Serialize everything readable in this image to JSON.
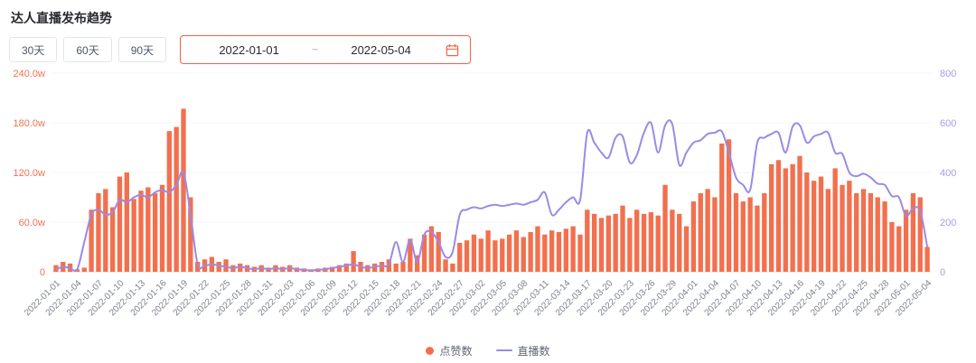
{
  "page": {
    "title": "达人直播发布趋势"
  },
  "controls": {
    "range_buttons": [
      {
        "label": "30天"
      },
      {
        "label": "60天"
      },
      {
        "label": "90天"
      }
    ],
    "date_range": {
      "start": "2022-01-01",
      "separator": "~",
      "end": "2022-05-04"
    }
  },
  "colors": {
    "bar": "#f2704e",
    "line": "#9b8ae6",
    "left_axis_label": "#f2704e",
    "right_axis_label": "#a99ce8",
    "x_axis_label": "#7b828e",
    "axis_line": "#e3e5ea",
    "grid_line": "#f5f5f7",
    "date_border": "#f0614a"
  },
  "chart_data": {
    "type": "bar",
    "title": "达人直播发布趋势",
    "legend": [
      "点赞数",
      "直播数"
    ],
    "legend_position": "bottom",
    "x_tick_every": 3,
    "left_axis": {
      "ticks": [
        "0",
        "60.0w",
        "120.0w",
        "180.0w",
        "240.0w"
      ],
      "max": 240,
      "unit": "w"
    },
    "right_axis": {
      "ticks": [
        "0",
        "200",
        "400",
        "600",
        "800"
      ],
      "max": 800
    },
    "x": [
      "2022-01-01",
      "2022-01-02",
      "2022-01-03",
      "2022-01-04",
      "2022-01-05",
      "2022-01-06",
      "2022-01-07",
      "2022-01-08",
      "2022-01-09",
      "2022-01-10",
      "2022-01-11",
      "2022-01-12",
      "2022-01-13",
      "2022-01-14",
      "2022-01-15",
      "2022-01-16",
      "2022-01-17",
      "2022-01-18",
      "2022-01-19",
      "2022-01-20",
      "2022-01-21",
      "2022-01-22",
      "2022-01-23",
      "2022-01-24",
      "2022-01-25",
      "2022-01-26",
      "2022-01-27",
      "2022-01-28",
      "2022-01-29",
      "2022-01-30",
      "2022-01-31",
      "2022-02-01",
      "2022-02-02",
      "2022-02-03",
      "2022-02-04",
      "2022-02-05",
      "2022-02-06",
      "2022-02-07",
      "2022-02-08",
      "2022-02-09",
      "2022-02-10",
      "2022-02-11",
      "2022-02-12",
      "2022-02-13",
      "2022-02-14",
      "2022-02-15",
      "2022-02-16",
      "2022-02-17",
      "2022-02-18",
      "2022-02-19",
      "2022-02-20",
      "2022-02-21",
      "2022-02-22",
      "2022-02-23",
      "2022-02-24",
      "2022-02-25",
      "2022-02-26",
      "2022-02-27",
      "2022-02-28",
      "2022-03-01",
      "2022-03-02",
      "2022-03-03",
      "2022-03-04",
      "2022-03-05",
      "2022-03-06",
      "2022-03-07",
      "2022-03-08",
      "2022-03-09",
      "2022-03-10",
      "2022-03-11",
      "2022-03-12",
      "2022-03-13",
      "2022-03-14",
      "2022-03-15",
      "2022-03-16",
      "2022-03-17",
      "2022-03-18",
      "2022-03-19",
      "2022-03-20",
      "2022-03-21",
      "2022-03-22",
      "2022-03-23",
      "2022-03-24",
      "2022-03-25",
      "2022-03-26",
      "2022-03-27",
      "2022-03-28",
      "2022-03-29",
      "2022-03-30",
      "2022-03-31",
      "2022-04-01",
      "2022-04-02",
      "2022-04-03",
      "2022-04-04",
      "2022-04-05",
      "2022-04-06",
      "2022-04-07",
      "2022-04-08",
      "2022-04-09",
      "2022-04-10",
      "2022-04-11",
      "2022-04-12",
      "2022-04-13",
      "2022-04-14",
      "2022-04-15",
      "2022-04-16",
      "2022-04-17",
      "2022-04-18",
      "2022-04-19",
      "2022-04-20",
      "2022-04-21",
      "2022-04-22",
      "2022-04-23",
      "2022-04-24",
      "2022-04-25",
      "2022-04-26",
      "2022-04-27",
      "2022-04-28",
      "2022-04-29",
      "2022-04-30",
      "2022-05-01",
      "2022-05-02",
      "2022-05-03",
      "2022-05-04"
    ],
    "series": [
      {
        "name": "点赞数",
        "type": "bar",
        "y_axis": "left",
        "unit": "w",
        "values": [
          8,
          12,
          10,
          3,
          5,
          75,
          95,
          100,
          78,
          115,
          120,
          88,
          98,
          102,
          95,
          105,
          170,
          175,
          197,
          90,
          12,
          15,
          18,
          12,
          15,
          8,
          10,
          8,
          6,
          8,
          5,
          8,
          6,
          8,
          5,
          4,
          3,
          4,
          5,
          6,
          8,
          10,
          25,
          12,
          8,
          10,
          12,
          15,
          10,
          12,
          40,
          20,
          45,
          55,
          48,
          15,
          10,
          35,
          38,
          45,
          40,
          50,
          38,
          40,
          45,
          50,
          42,
          48,
          55,
          45,
          50,
          48,
          52,
          55,
          45,
          75,
          70,
          65,
          68,
          70,
          80,
          65,
          75,
          70,
          72,
          68,
          105,
          75,
          70,
          55,
          85,
          95,
          100,
          90,
          155,
          160,
          95,
          85,
          90,
          80,
          95,
          130,
          135,
          125,
          130,
          140,
          120,
          110,
          115,
          100,
          125,
          105,
          110,
          95,
          100,
          95,
          90,
          85,
          60,
          55,
          75,
          95,
          90,
          30
        ]
      },
      {
        "name": "直播数",
        "type": "line",
        "y_axis": "right",
        "values": [
          10,
          20,
          15,
          10,
          120,
          230,
          250,
          230,
          240,
          290,
          280,
          300,
          310,
          300,
          320,
          330,
          320,
          350,
          400,
          230,
          30,
          25,
          30,
          25,
          20,
          15,
          20,
          15,
          10,
          15,
          10,
          15,
          10,
          15,
          10,
          8,
          5,
          8,
          10,
          15,
          20,
          25,
          30,
          20,
          15,
          20,
          25,
          30,
          120,
          40,
          130,
          40,
          150,
          160,
          120,
          60,
          80,
          230,
          250,
          260,
          255,
          265,
          270,
          265,
          270,
          275,
          270,
          280,
          290,
          320,
          230,
          250,
          280,
          300,
          290,
          560,
          520,
          480,
          460,
          540,
          545,
          440,
          470,
          560,
          600,
          480,
          590,
          595,
          430,
          480,
          520,
          530,
          555,
          560,
          565,
          480,
          380,
          350,
          330,
          520,
          540,
          555,
          560,
          480,
          585,
          590,
          520,
          545,
          555,
          560,
          480,
          475,
          400,
          385,
          395,
          380,
          355,
          350,
          305,
          300,
          225,
          255,
          245,
          100
        ]
      }
    ]
  }
}
